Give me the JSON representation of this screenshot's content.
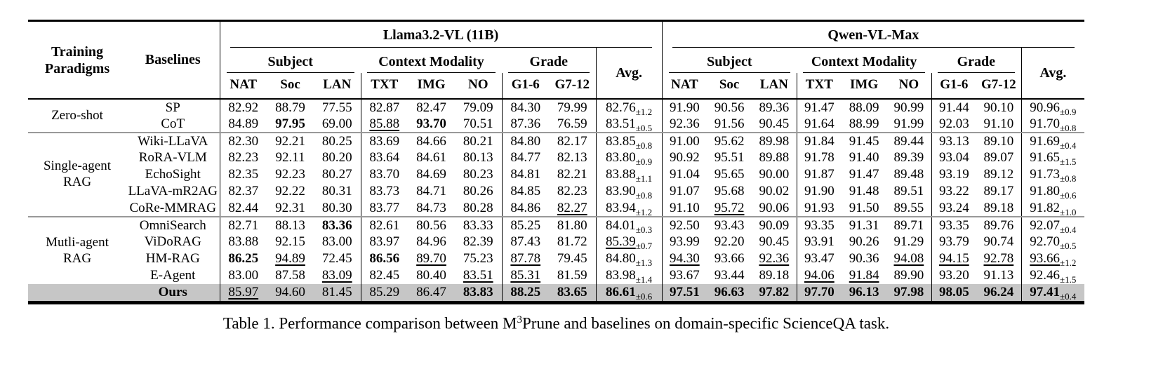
{
  "style": {
    "highlight_bg": "#c6c6c6",
    "rule_color": "#000000",
    "group_rule_color": "#999999"
  },
  "caption": {
    "prefix": "Table 1. Performance comparison between M",
    "superscript": "3",
    "suffix": "Prune and baselines on domain-specific ScienceQA task."
  },
  "header": {
    "training_paradigms": "Training\nParadigms",
    "baselines": "Baselines",
    "models": [
      "Llama3.2-VL (11B)",
      "Qwen-VL-Max"
    ],
    "groups": [
      {
        "label": "Subject",
        "span": 3
      },
      {
        "label": "Context Modality",
        "span": 3
      },
      {
        "label": "Grade",
        "span": 2
      }
    ],
    "avg": "Avg.",
    "subcols": [
      "NAT",
      "Soc",
      "LAN",
      "TXT",
      "IMG",
      "NO",
      "G1-6",
      "G7-12"
    ]
  },
  "body": {
    "note_flags": "prefix * = bold, prefix _ = underlined, text after ± is subscript",
    "groups": [
      {
        "paradigm": "Zero-shot",
        "rows": [
          {
            "name": "SP",
            "llama": [
              "82.92",
              "88.79",
              "77.55",
              "82.87",
              "82.47",
              "79.09",
              "84.30",
              "79.99",
              "82.76±1.2"
            ],
            "qwen": [
              "91.90",
              "90.56",
              "89.36",
              "91.47",
              "88.09",
              "90.99",
              "91.44",
              "90.10",
              "90.96±0.9"
            ]
          },
          {
            "name": "CoT",
            "llama": [
              "84.89",
              "*97.95",
              "69.00",
              "_85.88",
              "*93.70",
              "70.51",
              "87.36",
              "76.59",
              "83.51±0.5"
            ],
            "qwen": [
              "92.36",
              "91.56",
              "90.45",
              "91.64",
              "88.99",
              "91.99",
              "92.03",
              "91.10",
              "91.70±0.8"
            ]
          }
        ]
      },
      {
        "paradigm": "Single-agent\nRAG",
        "rows": [
          {
            "name": "Wiki-LLaVA",
            "llama": [
              "82.30",
              "92.21",
              "80.25",
              "83.69",
              "84.66",
              "80.21",
              "84.80",
              "82.17",
              "83.85±0.8"
            ],
            "qwen": [
              "91.00",
              "95.62",
              "89.98",
              "91.84",
              "91.45",
              "89.44",
              "93.13",
              "89.10",
              "91.69±0.4"
            ]
          },
          {
            "name": "RoRA-VLM",
            "llama": [
              "82.23",
              "92.11",
              "80.20",
              "83.64",
              "84.61",
              "80.13",
              "84.77",
              "82.13",
              "83.80±0.9"
            ],
            "qwen": [
              "90.92",
              "95.51",
              "89.88",
              "91.78",
              "91.40",
              "89.39",
              "93.04",
              "89.07",
              "91.65±1.5"
            ]
          },
          {
            "name": "EchoSight",
            "llama": [
              "82.35",
              "92.23",
              "80.27",
              "83.70",
              "84.69",
              "80.23",
              "84.81",
              "82.21",
              "83.88±1.1"
            ],
            "qwen": [
              "91.04",
              "95.65",
              "90.00",
              "91.87",
              "91.47",
              "89.48",
              "93.19",
              "89.12",
              "91.73±0.8"
            ]
          },
          {
            "name": "LLaVA-mR2AG",
            "llama": [
              "82.37",
              "92.22",
              "80.31",
              "83.73",
              "84.71",
              "80.26",
              "84.85",
              "82.23",
              "83.90±0.8"
            ],
            "qwen": [
              "91.07",
              "95.68",
              "90.02",
              "91.90",
              "91.48",
              "89.51",
              "93.22",
              "89.17",
              "91.80±0.6"
            ]
          },
          {
            "name": "CoRe-MMRAG",
            "llama": [
              "82.44",
              "92.31",
              "80.30",
              "83.77",
              "84.73",
              "80.28",
              "84.86",
              "_82.27",
              "83.94±1.2"
            ],
            "qwen": [
              "91.10",
              "_95.72",
              "90.06",
              "91.93",
              "91.50",
              "89.55",
              "93.24",
              "89.18",
              "91.82±1.0"
            ]
          }
        ]
      },
      {
        "paradigm": "Mutli-agent\nRAG",
        "rows": [
          {
            "name": "OmniSearch",
            "llama": [
              "82.71",
              "88.13",
              "*83.36",
              "82.61",
              "80.56",
              "83.33",
              "85.25",
              "81.80",
              "84.01±0.3"
            ],
            "qwen": [
              "92.50",
              "93.43",
              "90.09",
              "93.35",
              "91.31",
              "89.71",
              "93.35",
              "89.76",
              "92.07±0.4"
            ]
          },
          {
            "name": "ViDoRAG",
            "llama": [
              "83.88",
              "92.15",
              "83.00",
              "83.97",
              "84.96",
              "82.39",
              "87.43",
              "81.72",
              "_85.39±0.7"
            ],
            "qwen": [
              "93.99",
              "92.20",
              "90.45",
              "93.91",
              "90.26",
              "91.29",
              "93.79",
              "90.74",
              "92.70±0.5"
            ]
          },
          {
            "name": "HM-RAG",
            "llama": [
              "*86.25",
              "_94.89",
              "72.45",
              "*86.56",
              "_89.70",
              "75.23",
              "_87.78",
              "79.45",
              "84.80±1.3"
            ],
            "qwen": [
              "_94.30",
              "93.66",
              "_92.36",
              "93.47",
              "90.36",
              "_94.08",
              "_94.15",
              "_92.78",
              "_93.66±1.2"
            ]
          },
          {
            "name": "E-Agent",
            "llama": [
              "83.00",
              "87.58",
              "_83.09",
              "82.45",
              "80.40",
              "_83.51",
              "_85.31",
              "81.59",
              "83.98±1.4"
            ],
            "qwen": [
              "93.67",
              "93.44",
              "89.18",
              "_94.06",
              "_91.84",
              "89.90",
              "93.20",
              "91.13",
              "92.46±1.5"
            ]
          },
          {
            "name": "*Ours",
            "highlight": true,
            "llama": [
              "_85.97",
              "94.60",
              "81.45",
              "85.29",
              "86.47",
              "*83.83",
              "*88.25",
              "*83.65",
              "*86.61±0.6"
            ],
            "qwen": [
              "*97.51",
              "*96.63",
              "*97.82",
              "*97.70",
              "*96.13",
              "*97.98",
              "*98.05",
              "*96.24",
              "*97.41±0.4"
            ]
          }
        ]
      }
    ]
  }
}
